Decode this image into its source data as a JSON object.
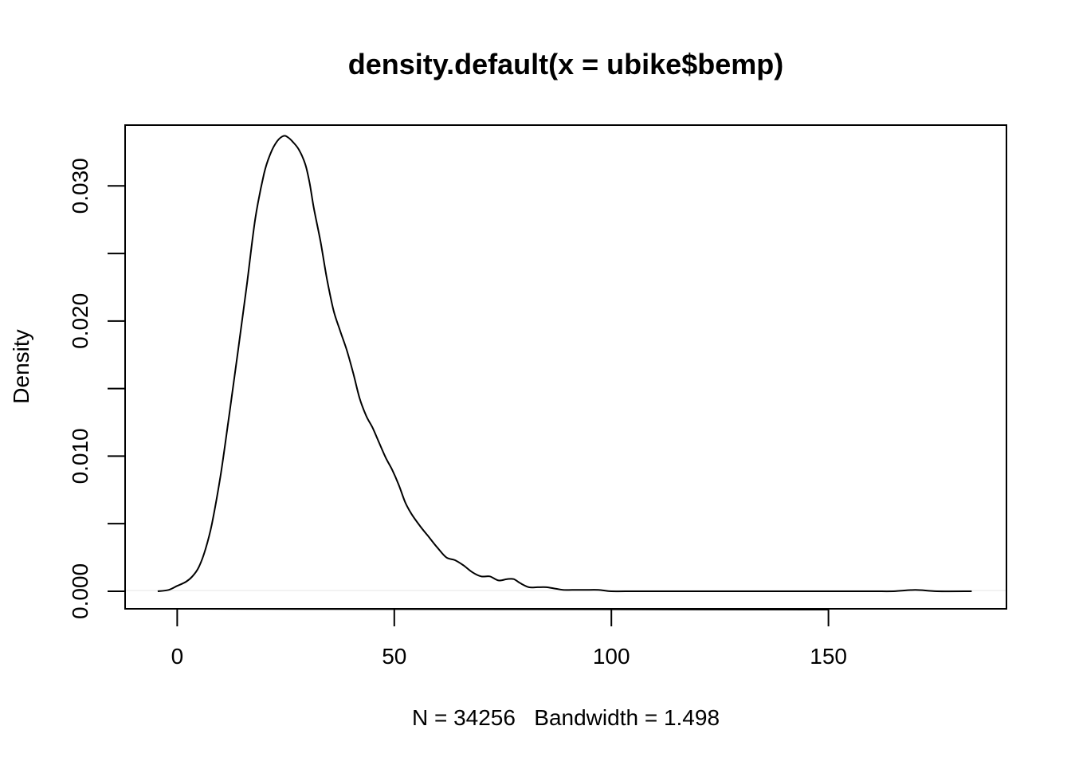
{
  "chart_data": {
    "type": "line",
    "title": "density.default(x = ubike$bemp)",
    "xlabel": "N = 34256   Bandwidth = 1.498",
    "ylabel": "Density",
    "xlim": [
      -12,
      191
    ],
    "ylim": [
      -0.0013,
      0.0345
    ],
    "x_ticks": [
      0,
      50,
      100,
      150
    ],
    "x_tick_labels": [
      "0",
      "50",
      "100",
      "150"
    ],
    "y_ticks": [
      0.0,
      0.005,
      0.01,
      0.015,
      0.02,
      0.025,
      0.03
    ],
    "y_tick_labels": [
      "0.000",
      "",
      "0.010",
      "",
      "0.020",
      "",
      "0.030"
    ],
    "grid": false,
    "series": [
      {
        "color": "#000000",
        "x": [
          -4.5,
          -2,
          0,
          2,
          3.5,
          5,
          6.5,
          8,
          10,
          12,
          14,
          16,
          18,
          20,
          21.5,
          23,
          24.5,
          25.5,
          26.5,
          28,
          29.5,
          30.5,
          31.5,
          33,
          34.5,
          36,
          37.5,
          39,
          40.5,
          42,
          43.5,
          45,
          46.5,
          48,
          49.5,
          51,
          52.5,
          54,
          56,
          58,
          60,
          62,
          64,
          66,
          68,
          70,
          72,
          74,
          76,
          77.5,
          79,
          81,
          83,
          85,
          87,
          89,
          91,
          94,
          97,
          100,
          105,
          110,
          120,
          130,
          140,
          150,
          160,
          165,
          170,
          175,
          183
        ],
        "y": [
          0.0,
          0.0001,
          0.0004,
          0.0007,
          0.0011,
          0.0018,
          0.0031,
          0.005,
          0.0086,
          0.0131,
          0.0178,
          0.0226,
          0.0276,
          0.0309,
          0.0324,
          0.0333,
          0.0337,
          0.0336,
          0.0333,
          0.0327,
          0.0316,
          0.0302,
          0.0283,
          0.0259,
          0.0231,
          0.0208,
          0.0193,
          0.0179,
          0.0162,
          0.0143,
          0.013,
          0.0121,
          0.011,
          0.0099,
          0.009,
          0.0079,
          0.0066,
          0.0057,
          0.0048,
          0.004,
          0.0032,
          0.0025,
          0.0023,
          0.0019,
          0.0014,
          0.0011,
          0.0011,
          0.0008,
          0.0009,
          0.0009,
          0.0006,
          0.0003,
          0.0003,
          0.0003,
          0.0002,
          0.0001,
          0.0001,
          0.0001,
          0.0001,
          0.0,
          0.0,
          0.0,
          0.0,
          0.0,
          0.0,
          0.0,
          0.0,
          0.0,
          0.0001,
          0.0,
          0.0
        ]
      }
    ]
  }
}
